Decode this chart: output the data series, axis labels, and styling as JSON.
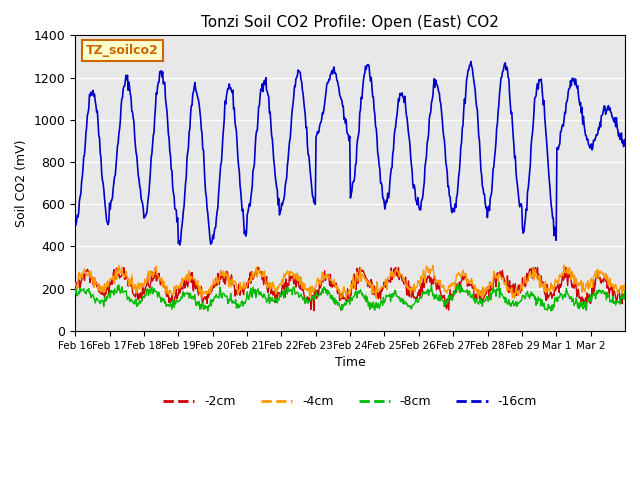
{
  "title": "Tonzi Soil CO2 Profile: Open (East) CO2",
  "ylabel": "Soil CO2 (mV)",
  "xlabel": "Time",
  "ylim": [
    0,
    1400
  ],
  "yticks": [
    0,
    200,
    400,
    600,
    800,
    1000,
    1200,
    1400
  ],
  "x_tick_positions": [
    0,
    1,
    2,
    3,
    4,
    5,
    6,
    7,
    8,
    9,
    10,
    11,
    12,
    13,
    14,
    15
  ],
  "x_tick_labels": [
    "Feb 16",
    "Feb 17",
    "Feb 18",
    "Feb 19",
    "Feb 20",
    "Feb 21",
    "Feb 22",
    "Feb 23",
    "Feb 24",
    "Feb 25",
    "Feb 26",
    "Feb 27",
    "Feb 28",
    "Feb 29",
    "Mar 1",
    "Mar 2"
  ],
  "colors": {
    "blue_16cm": "#0000CC",
    "red_2cm": "#CC0000",
    "orange_4cm": "#FF9900",
    "green_8cm": "#00BB00"
  },
  "legend_labels": [
    "-2cm",
    "-4cm",
    "-8cm",
    "-16cm"
  ],
  "legend_colors": [
    "#CC0000",
    "#FF9900",
    "#00BB00",
    "#0000CC"
  ],
  "label_box": "TZ_soilco2",
  "label_box_bg": "#FFFFCC",
  "label_box_border": "#CC6600",
  "bg_color": "#E8E8E8",
  "grid_color": "#FFFFFF",
  "n_days": 16,
  "pts_per_day": 48
}
